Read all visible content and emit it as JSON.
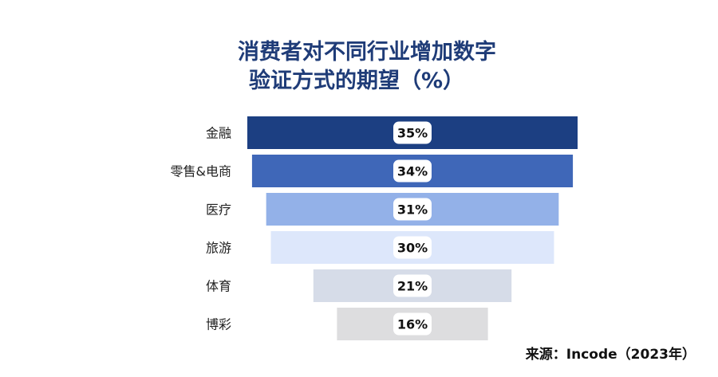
{
  "title": {
    "line1": "消费者对不同行业增加数字",
    "line2": "验证方式的期望（%）"
  },
  "source": "来源：Incode（2023年）",
  "chart_data": {
    "type": "bar",
    "orientation": "horizontal-funnel",
    "title": "消费者对不同行业增加数字验证方式的期望（%）",
    "categories": [
      "金融",
      "零售&电商",
      "医疗",
      "旅游",
      "体育",
      "博彩"
    ],
    "values": [
      35,
      34,
      31,
      30,
      21,
      16
    ],
    "value_labels": [
      "35%",
      "34%",
      "31%",
      "30%",
      "21%",
      "16%"
    ],
    "unit": "%",
    "colors": [
      "#1c3f82",
      "#3f67b8",
      "#93b1e8",
      "#dde7fb",
      "#d6dce8",
      "#dddddf"
    ],
    "grid": false,
    "legend": "none"
  }
}
